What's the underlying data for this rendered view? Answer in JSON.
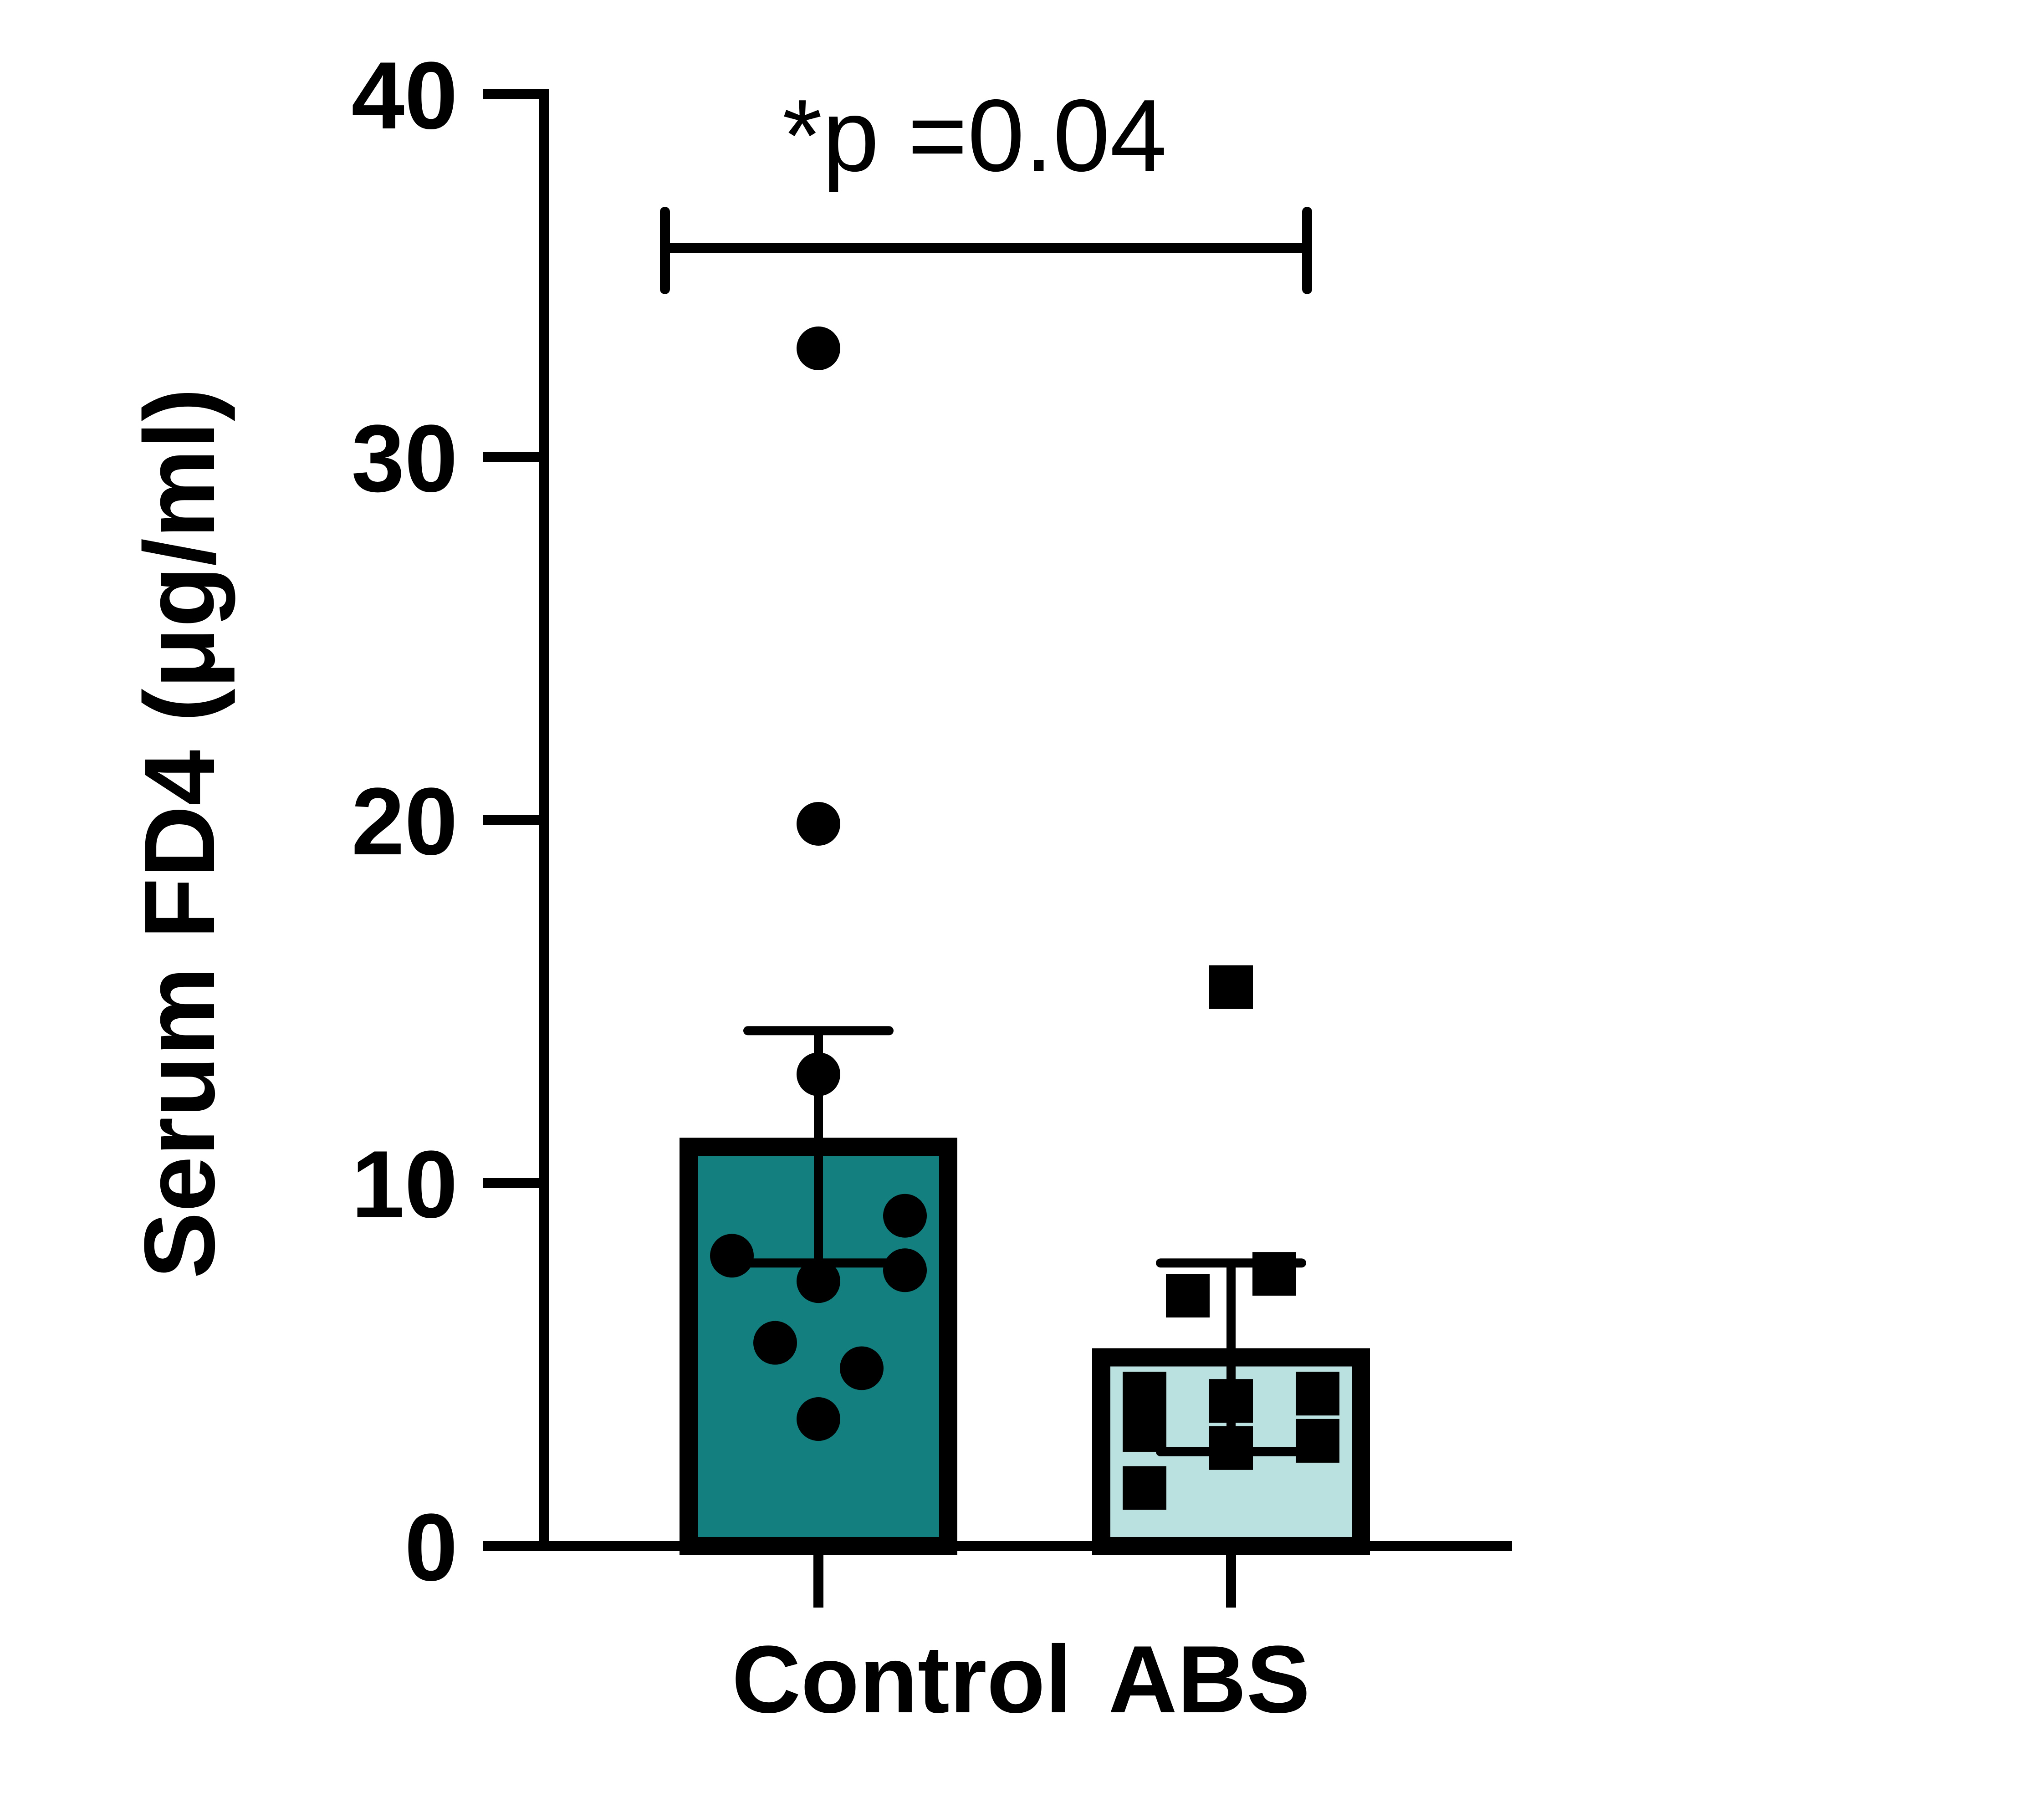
{
  "chart_data": {
    "type": "bar",
    "categories": [
      "Control",
      "ABS"
    ],
    "ylabel": "Serum FD4 (μg/ml)",
    "ylim": [
      0,
      40
    ],
    "yticks": [
      0,
      10,
      20,
      30,
      40
    ],
    "series": [
      {
        "values": [
          11.0,
          5.2
        ],
        "errors": [
          3.2,
          2.6
        ],
        "colors": [
          "#137f7f",
          "#bbe0e0"
        ],
        "markers": [
          "circle",
          "square"
        ]
      }
    ],
    "points": [
      [
        33.0,
        19.9,
        13.0,
        9.1,
        8.0,
        7.6,
        7.3,
        5.6,
        4.9,
        3.5
      ],
      [
        15.4,
        7.5,
        6.9,
        4.2,
        4.2,
        4.0,
        3.2,
        2.9,
        2.7,
        1.6
      ]
    ],
    "annotation": "*p =0.04",
    "grid": false,
    "legend": "none"
  }
}
